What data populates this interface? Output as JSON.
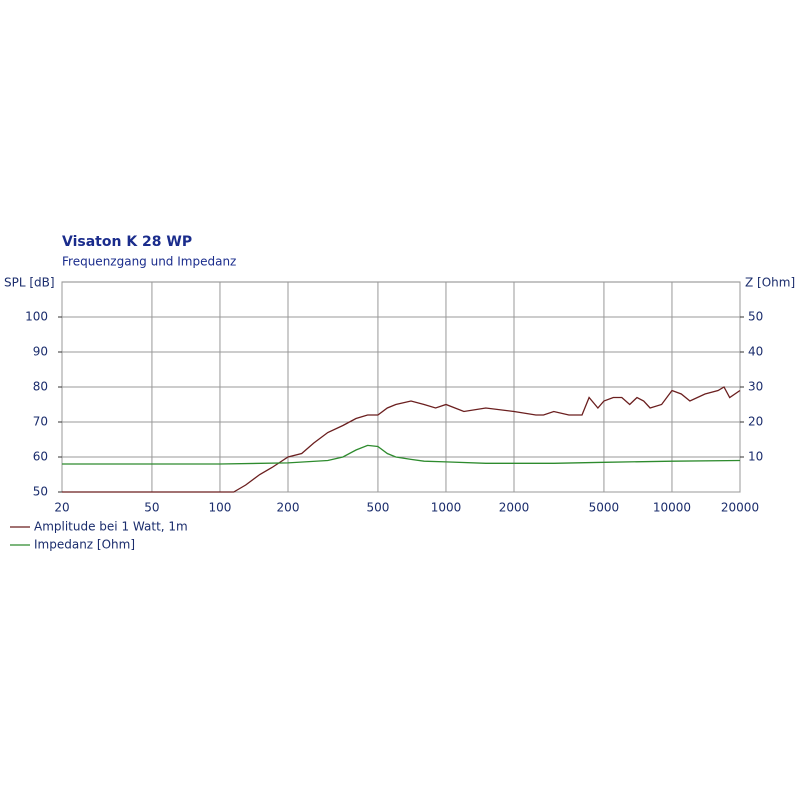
{
  "chart_data": {
    "type": "line",
    "title": "Visaton K 28 WP",
    "subtitle": "Frequenzgang und Impedanz",
    "y_label": "SPL [dB]",
    "y2_label": "Z [Ohm]",
    "xscale": "log",
    "grid": true,
    "xlim": [
      20,
      20000
    ],
    "xticks": [
      20,
      50,
      100,
      200,
      500,
      1000,
      2000,
      5000,
      10000,
      20000
    ],
    "ylim": [
      50,
      110
    ],
    "yticks": [
      50,
      60,
      70,
      80,
      90,
      100
    ],
    "y2lim": [
      0,
      60
    ],
    "y2ticks": [
      10,
      20,
      30,
      40,
      50
    ],
    "series": [
      {
        "name": "Amplitude bei 1 Watt, 1m",
        "color": "#6b1f1f",
        "x": [
          20,
          50,
          100,
          115,
          130,
          150,
          170,
          200,
          230,
          260,
          300,
          350,
          400,
          450,
          500,
          550,
          600,
          700,
          800,
          900,
          1000,
          1200,
          1500,
          2000,
          2500,
          2700,
          3000,
          3500,
          4000,
          4300,
          4700,
          5000,
          5500,
          6000,
          6500,
          7000,
          7500,
          8000,
          9000,
          10000,
          11000,
          12000,
          14000,
          16000,
          17000,
          18000,
          20000
        ],
        "values": [
          50,
          50,
          50,
          50,
          52,
          55,
          57,
          60,
          61,
          64,
          67,
          69,
          71,
          72,
          72,
          74,
          75,
          76,
          75,
          74,
          75,
          73,
          74,
          73,
          72,
          72,
          73,
          72,
          72,
          77,
          74,
          76,
          77,
          77,
          75,
          77,
          76,
          74,
          75,
          79,
          78,
          76,
          78,
          79,
          80,
          77,
          79
        ]
      },
      {
        "name": "Impedanz [Ohm]",
        "color": "#2e8b2e",
        "axis": "y2",
        "x": [
          20,
          100,
          200,
          300,
          350,
          400,
          450,
          500,
          550,
          600,
          700,
          800,
          1000,
          1500,
          2000,
          3000,
          5000,
          10000,
          20000
        ],
        "values": [
          8,
          8,
          8.3,
          9,
          10,
          12,
          13.3,
          13,
          11,
          10,
          9.3,
          8.8,
          8.6,
          8.2,
          8.2,
          8.2,
          8.5,
          8.8,
          9
        ]
      }
    ]
  }
}
